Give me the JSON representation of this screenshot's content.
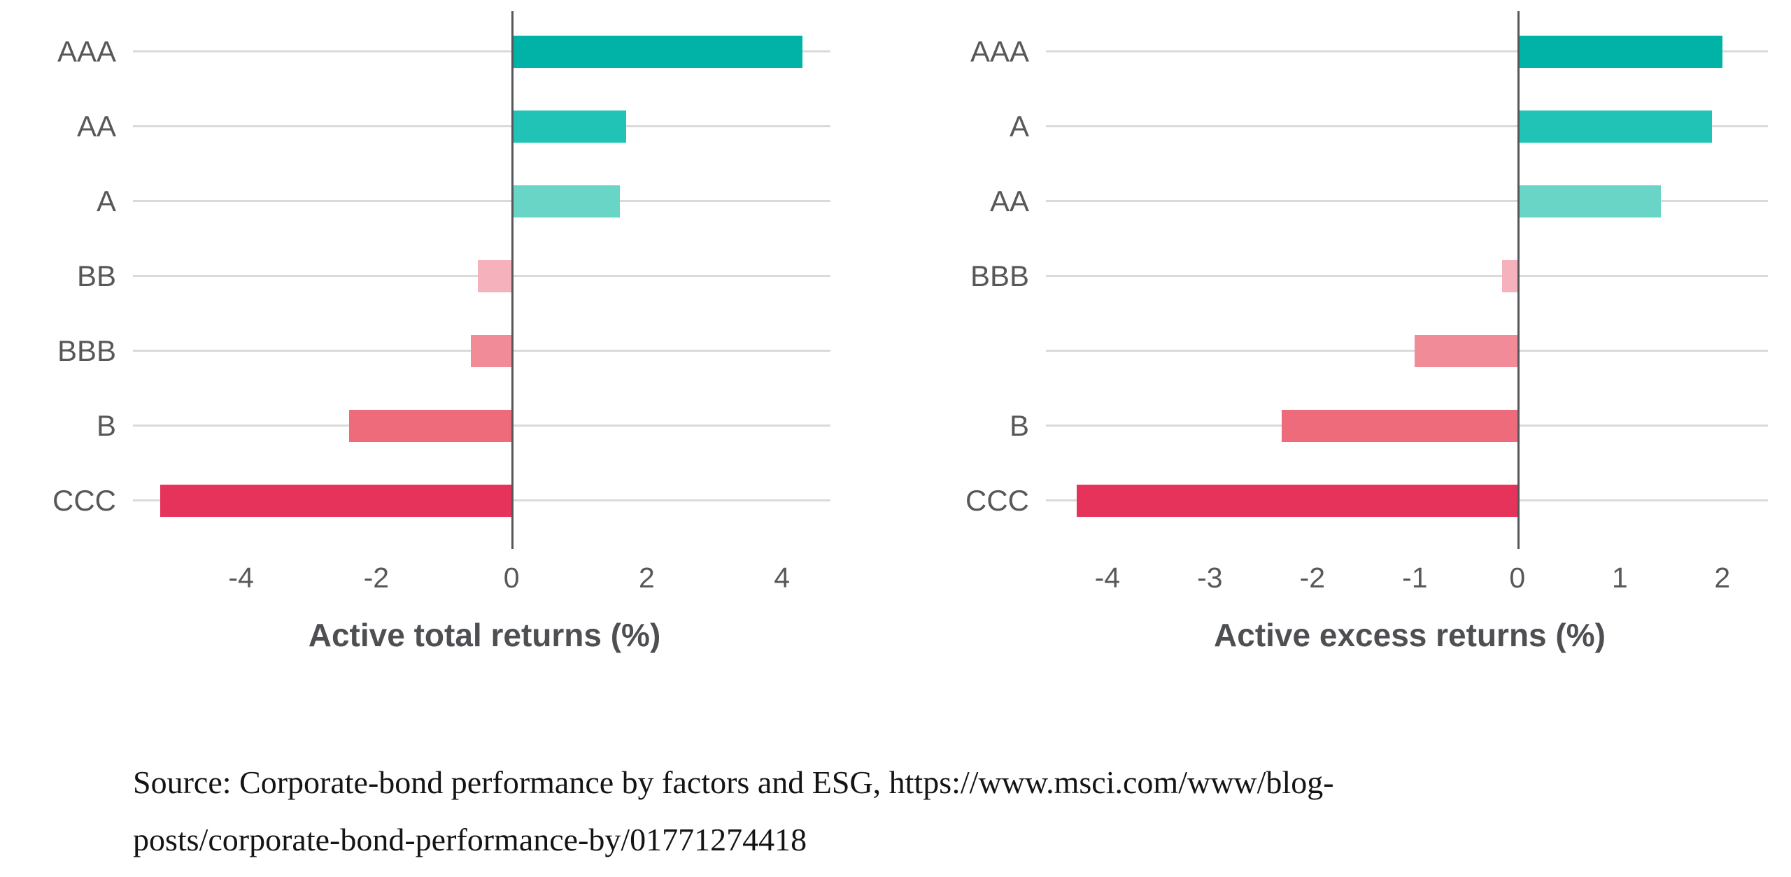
{
  "chart_data": [
    {
      "type": "bar",
      "orientation": "horizontal",
      "title": "",
      "xlabel": "Active total returns (%)",
      "ylabel": "",
      "categories": [
        "AAA",
        "AA",
        "A",
        "BB",
        "BBB",
        "B",
        "CCC"
      ],
      "values": [
        4.3,
        1.7,
        1.6,
        -0.5,
        -0.6,
        -2.4,
        -5.2
      ],
      "bar_colors": [
        "#00b3a6",
        "#20c3b5",
        "#69d5c7",
        "#f5b1bc",
        "#f18b98",
        "#ee6b7c",
        "#e5335b"
      ],
      "ticks": [
        "-4",
        "-2",
        "0",
        "2",
        "4"
      ],
      "tick_values": [
        -4,
        -2,
        0,
        2,
        4
      ],
      "axis_range": [
        -5.6,
        4.8
      ],
      "grid": "horizontal-category-lines",
      "legend": "none"
    },
    {
      "type": "bar",
      "orientation": "horizontal",
      "title": "",
      "xlabel": "Active excess returns (%)",
      "ylabel": "",
      "categories": [
        "AAA",
        "A",
        "AA",
        "BBB",
        "",
        "B",
        "CCC"
      ],
      "values": [
        2.0,
        1.9,
        1.4,
        -0.15,
        -1.0,
        -2.3,
        -4.3
      ],
      "bar_colors": [
        "#00b3a6",
        "#20c3b5",
        "#69d5c7",
        "#f5b1bc",
        "#f18b98",
        "#ee6b7c",
        "#e5335b"
      ],
      "ticks": [
        "-4",
        "-3",
        "-2",
        "-1",
        "0",
        "1",
        "2"
      ],
      "tick_values": [
        -4,
        -3,
        -2,
        -1,
        0,
        1,
        2
      ],
      "axis_range": [
        -4.6,
        2.5
      ],
      "grid": "horizontal-category-lines",
      "legend": "none"
    }
  ],
  "style": {
    "background": "#ffffff",
    "gridline_color": "#dadada",
    "zero_axis_color": "#56575b",
    "label_color": "#57585a",
    "xlabel_color": "#4d4f52"
  },
  "source": {
    "lines": [
      "Source: Corporate-bond performance by factors and ESG, https://www.msci.com/www/blog-",
      "posts/corporate-bond-performance-by/01771274418"
    ]
  }
}
